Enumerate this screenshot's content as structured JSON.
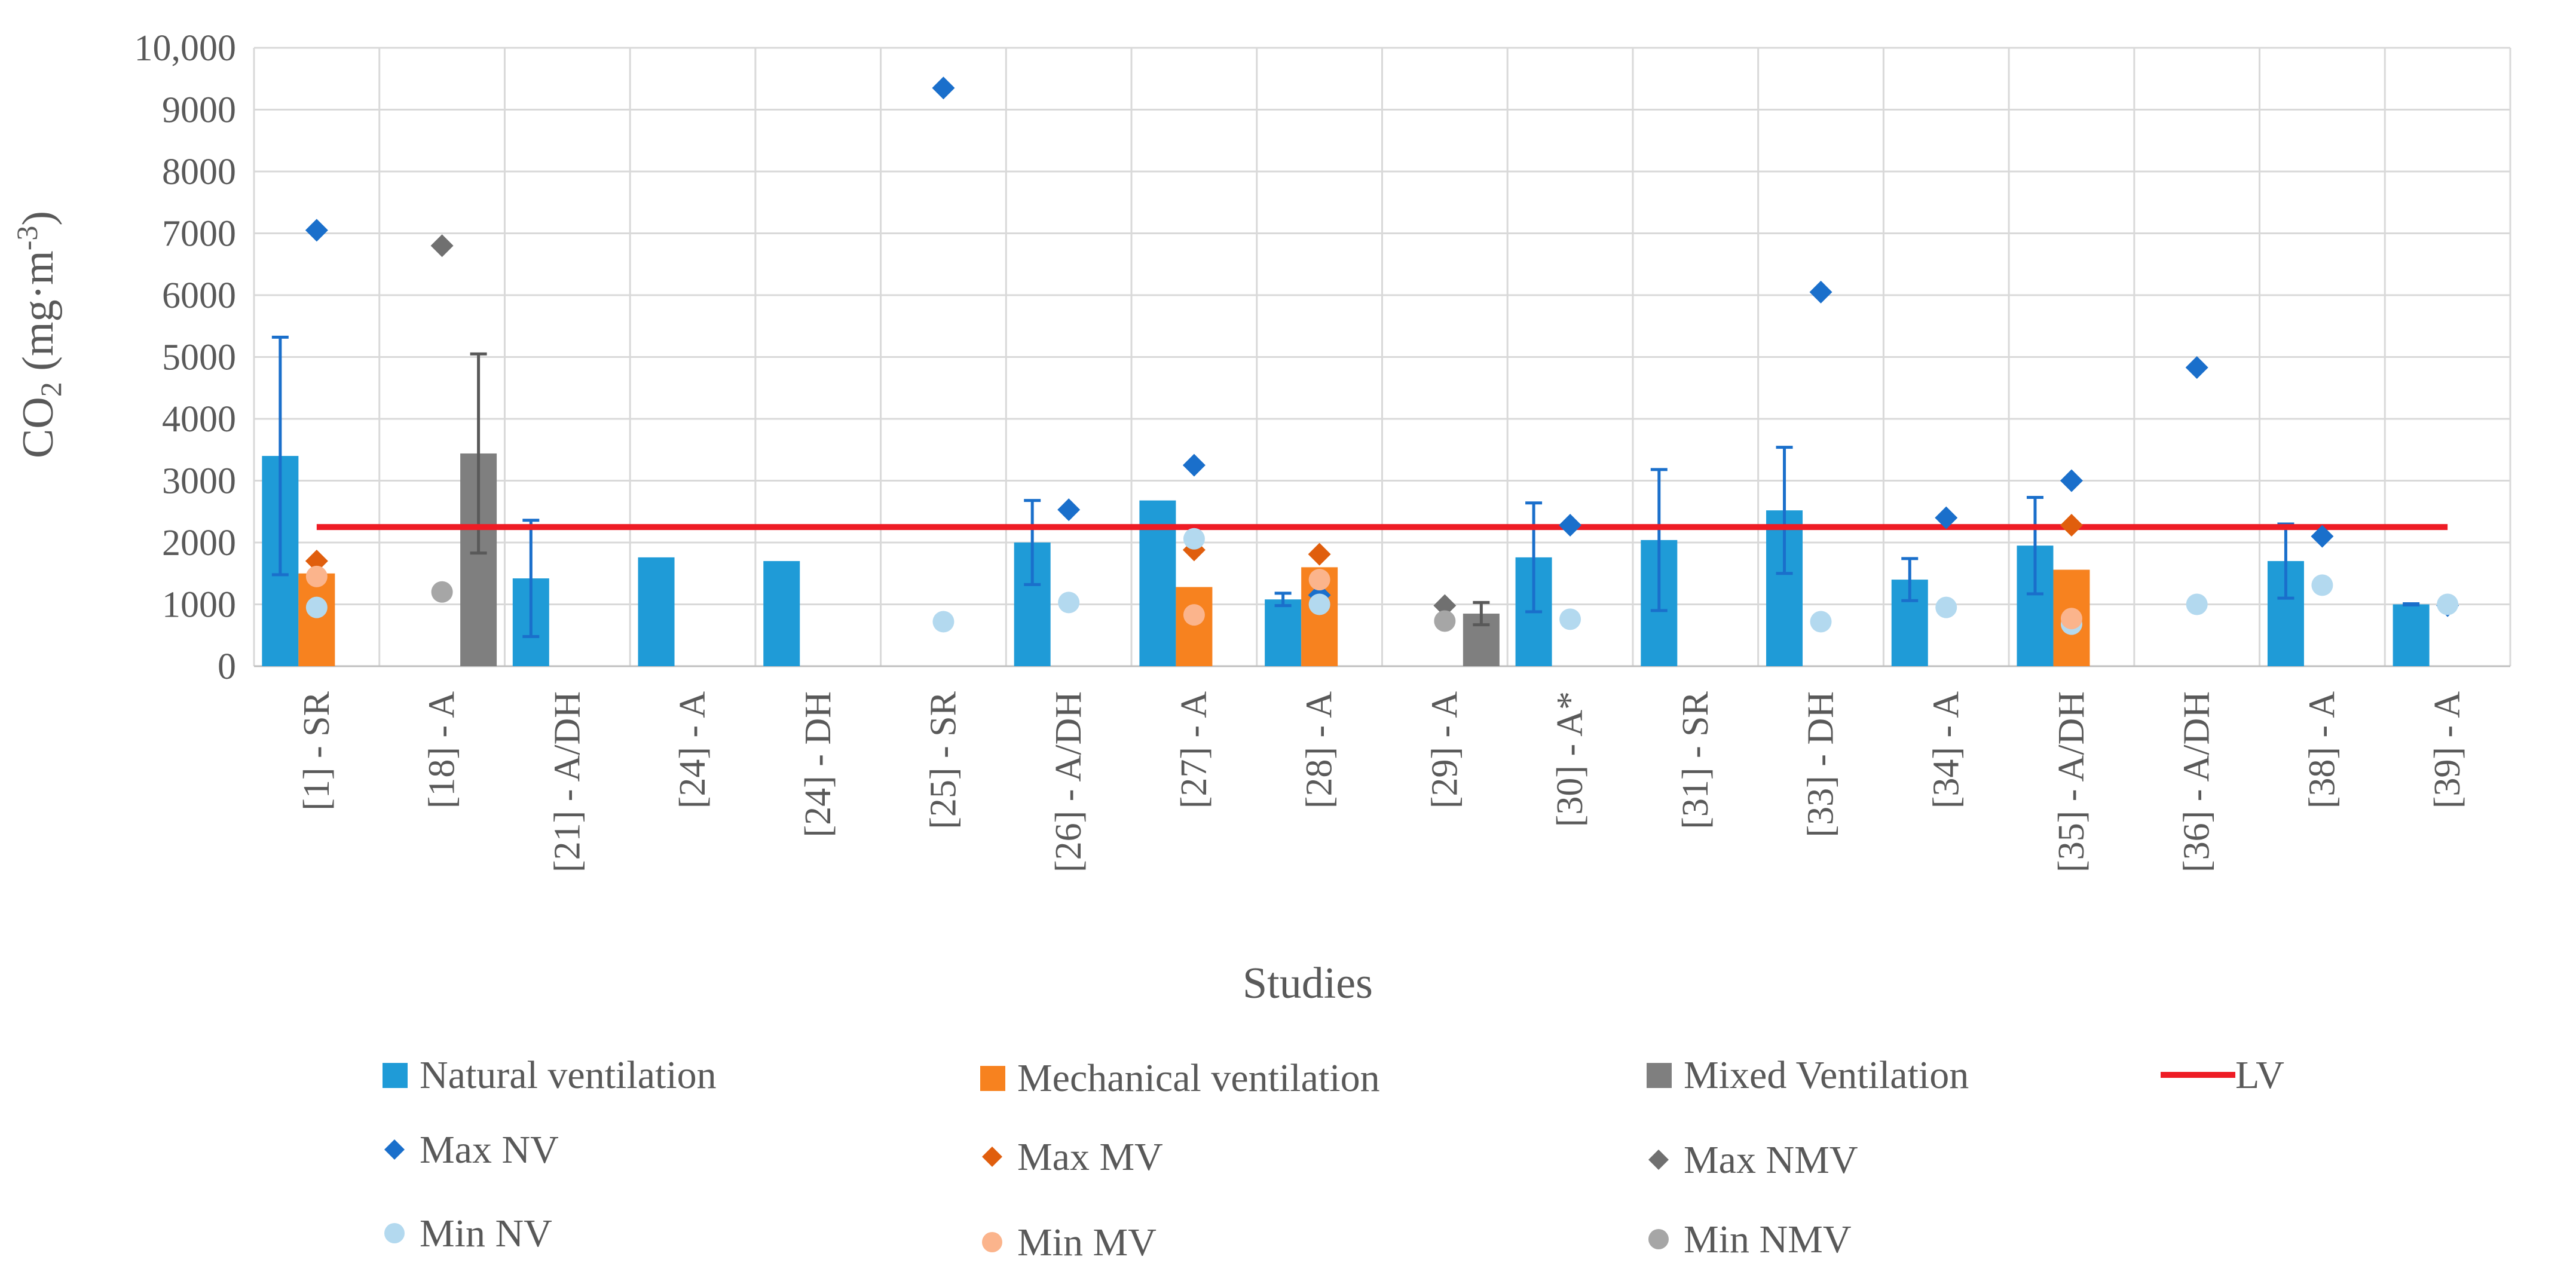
{
  "chart_data": {
    "type": "bar",
    "title": "",
    "xlabel": "Studies",
    "ylabel": {
      "prefix": "CO",
      "sub": "2",
      "unit_open": " (mg·m",
      "unit_sup": "-3",
      "unit_close": ")"
    },
    "ylim": [
      0,
      10000
    ],
    "yticks": [
      0,
      1000,
      2000,
      3000,
      4000,
      5000,
      6000,
      7000,
      8000,
      9000,
      10000
    ],
    "ytick_labels": [
      "0",
      "1000",
      "2000",
      "3000",
      "4000",
      "5000",
      "6000",
      "7000",
      "8000",
      "9000",
      "10,000"
    ],
    "grid": true,
    "categories": [
      "[1] - SR",
      "[18] - A",
      "[21] - A/DH",
      "[24] - A",
      "[24] - DH",
      "[25] - SR",
      "[26] - A/DH",
      "[27] - A",
      "[28] - A",
      "[29] - A",
      "[30] - A*",
      "[31] - SR",
      "[33] - DH",
      "[34] - A",
      "[35] - A/DH",
      "[36] - A/DH",
      "[38] - A",
      "[39] - A"
    ],
    "series": [
      {
        "name": "Natural ventilation",
        "kind": "bar",
        "color": "#1f9bd7",
        "values": [
          3400,
          null,
          1420,
          1760,
          1700,
          null,
          2000,
          2680,
          1080,
          null,
          1760,
          2040,
          2520,
          1400,
          1950,
          null,
          1700,
          1000
        ],
        "error": [
          1920,
          null,
          940,
          null,
          null,
          null,
          680,
          null,
          100,
          null,
          880,
          1140,
          1020,
          340,
          780,
          null,
          600,
          10
        ]
      },
      {
        "name": "Mechanical ventilation",
        "kind": "bar",
        "color": "#f7821f",
        "values": [
          1500,
          null,
          null,
          null,
          null,
          null,
          null,
          1280,
          1600,
          null,
          null,
          null,
          null,
          null,
          1560,
          null,
          null,
          null
        ],
        "error": [
          null,
          null,
          null,
          null,
          null,
          null,
          null,
          null,
          null,
          null,
          null,
          null,
          null,
          null,
          null,
          null,
          null,
          null
        ]
      },
      {
        "name": "Mixed Ventilation",
        "kind": "bar",
        "color": "#7f7f7f",
        "values": [
          null,
          3440,
          null,
          null,
          null,
          null,
          null,
          null,
          null,
          850,
          null,
          null,
          null,
          null,
          null,
          null,
          null,
          null
        ],
        "error": [
          null,
          1610,
          null,
          null,
          null,
          null,
          null,
          null,
          null,
          180,
          null,
          null,
          null,
          null,
          null,
          null,
          null,
          null
        ]
      },
      {
        "name": "LV",
        "kind": "line",
        "color": "#ee1c25",
        "value": 2250
      },
      {
        "name": "Max NV",
        "kind": "diamond",
        "color": "#1a6fcb",
        "values": [
          7050,
          null,
          null,
          null,
          null,
          9350,
          2530,
          3250,
          1150,
          null,
          2280,
          null,
          6050,
          2400,
          3000,
          4830,
          2100,
          980
        ]
      },
      {
        "name": "Max MV",
        "kind": "diamond",
        "color": "#e05e0d",
        "values": [
          1700,
          null,
          null,
          null,
          null,
          null,
          null,
          1880,
          1810,
          null,
          null,
          null,
          null,
          null,
          2280,
          null,
          null,
          null
        ]
      },
      {
        "name": "Max NMV",
        "kind": "diamond",
        "color": "#707070",
        "values": [
          null,
          6800,
          null,
          null,
          null,
          null,
          null,
          null,
          null,
          980,
          null,
          null,
          null,
          null,
          null,
          null,
          null,
          null
        ]
      },
      {
        "name": "Min NV",
        "kind": "circle",
        "color": "#b3d9ef",
        "values": [
          950,
          null,
          null,
          null,
          null,
          720,
          1030,
          2060,
          1000,
          null,
          760,
          null,
          720,
          950,
          680,
          1000,
          1310,
          1000
        ]
      },
      {
        "name": "Min MV",
        "kind": "circle",
        "color": "#fbb48c",
        "values": [
          1450,
          null,
          null,
          null,
          null,
          null,
          null,
          830,
          1400,
          null,
          null,
          null,
          null,
          null,
          770,
          null,
          null,
          null
        ]
      },
      {
        "name": "Min NMV",
        "kind": "circle",
        "color": "#a6a6a6",
        "values": [
          null,
          1200,
          null,
          null,
          null,
          null,
          null,
          null,
          null,
          730,
          null,
          null,
          null,
          null,
          null,
          null,
          null,
          null
        ]
      }
    ],
    "legend_position": "bottom"
  }
}
